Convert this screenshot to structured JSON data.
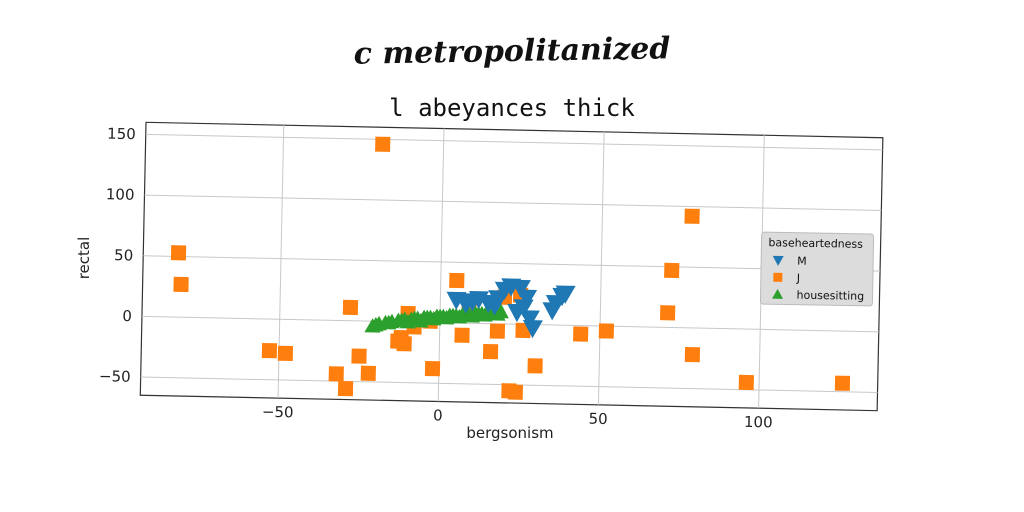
{
  "heading": "c metropolitanized",
  "chart_data": {
    "type": "scatter",
    "title": "l abeyances thick",
    "xlabel": "bergsonism",
    "ylabel": "rectal",
    "xlim": [
      -93,
      137
    ],
    "ylim": [
      -65,
      160
    ],
    "xticks": [
      -50,
      0,
      50,
      100
    ],
    "yticks": [
      150,
      100,
      50,
      0,
      -50
    ],
    "xtick_labels": [
      "−50",
      "0",
      "50",
      "100"
    ],
    "ytick_labels": [
      "150",
      "100",
      "50",
      "0",
      "−50"
    ],
    "grid": true,
    "legend": {
      "title": "baseheartedness",
      "placement": "right"
    },
    "series": [
      {
        "name": "M",
        "marker": "triangle-down",
        "color": "#1f77b4",
        "points": [
          [
            5,
            19
          ],
          [
            8,
            16
          ],
          [
            10,
            18
          ],
          [
            12,
            20
          ],
          [
            15,
            17
          ],
          [
            18,
            21
          ],
          [
            20,
            28
          ],
          [
            22,
            31
          ],
          [
            25,
            30
          ],
          [
            27,
            22
          ],
          [
            26,
            14
          ],
          [
            24,
            10
          ],
          [
            28,
            5
          ],
          [
            29,
            -3
          ],
          [
            35,
            12
          ],
          [
            36,
            18
          ],
          [
            38,
            24
          ],
          [
            39,
            26
          ],
          [
            17,
            15
          ]
        ]
      },
      {
        "name": "J",
        "marker": "square",
        "color": "#ff7f0e",
        "points": [
          [
            -82,
            53
          ],
          [
            -81,
            27
          ],
          [
            -19,
            146
          ],
          [
            -28,
            11
          ],
          [
            -10,
            7
          ],
          [
            -12,
            -13
          ],
          [
            -11,
            -18
          ],
          [
            -13,
            -16
          ],
          [
            -8,
            -4
          ],
          [
            -3,
            1
          ],
          [
            -2,
            -38
          ],
          [
            5,
            35
          ],
          [
            7,
            -10
          ],
          [
            9,
            13
          ],
          [
            16,
            -23
          ],
          [
            18,
            -6
          ],
          [
            20,
            22
          ],
          [
            22,
            -55
          ],
          [
            24,
            -56
          ],
          [
            25,
            24
          ],
          [
            26,
            -5
          ],
          [
            30,
            -34
          ],
          [
            44,
            -7
          ],
          [
            52,
            -4
          ],
          [
            71,
            12
          ],
          [
            72,
            47
          ],
          [
            78,
            92
          ],
          [
            79,
            -22
          ],
          [
            96,
            -44
          ],
          [
            126,
            -43
          ],
          [
            -53,
            -26
          ],
          [
            -48,
            -28
          ],
          [
            -32,
            -44
          ],
          [
            -29,
            -56
          ],
          [
            -25,
            -29
          ],
          [
            -22,
            -43
          ]
        ]
      },
      {
        "name": "housesitting",
        "marker": "triangle-up",
        "color": "#2ca02c",
        "points": [
          [
            -21,
            -4
          ],
          [
            -19,
            -2
          ],
          [
            -17,
            -1
          ],
          [
            -15,
            0
          ],
          [
            -13,
            1
          ],
          [
            -11,
            2
          ],
          [
            -9,
            2
          ],
          [
            -7,
            3
          ],
          [
            -5,
            4
          ],
          [
            -3,
            4
          ],
          [
            -1,
            5
          ],
          [
            1,
            5
          ],
          [
            3,
            6
          ],
          [
            5,
            6
          ],
          [
            7,
            7
          ],
          [
            9,
            7
          ],
          [
            11,
            8
          ],
          [
            13,
            8
          ],
          [
            15,
            9
          ],
          [
            17,
            9
          ],
          [
            19,
            10
          ],
          [
            -20,
            -3
          ],
          [
            -16,
            -1
          ],
          [
            -12,
            1
          ],
          [
            -8,
            3
          ],
          [
            -4,
            4
          ],
          [
            0,
            5
          ],
          [
            4,
            6
          ],
          [
            8,
            7
          ],
          [
            12,
            8
          ],
          [
            16,
            9
          ],
          [
            -10,
            0
          ],
          [
            -6,
            1
          ],
          [
            -2,
            3
          ],
          [
            2,
            4
          ],
          [
            6,
            5
          ],
          [
            10,
            6
          ],
          [
            14,
            7
          ],
          [
            18,
            8
          ]
        ]
      }
    ]
  }
}
